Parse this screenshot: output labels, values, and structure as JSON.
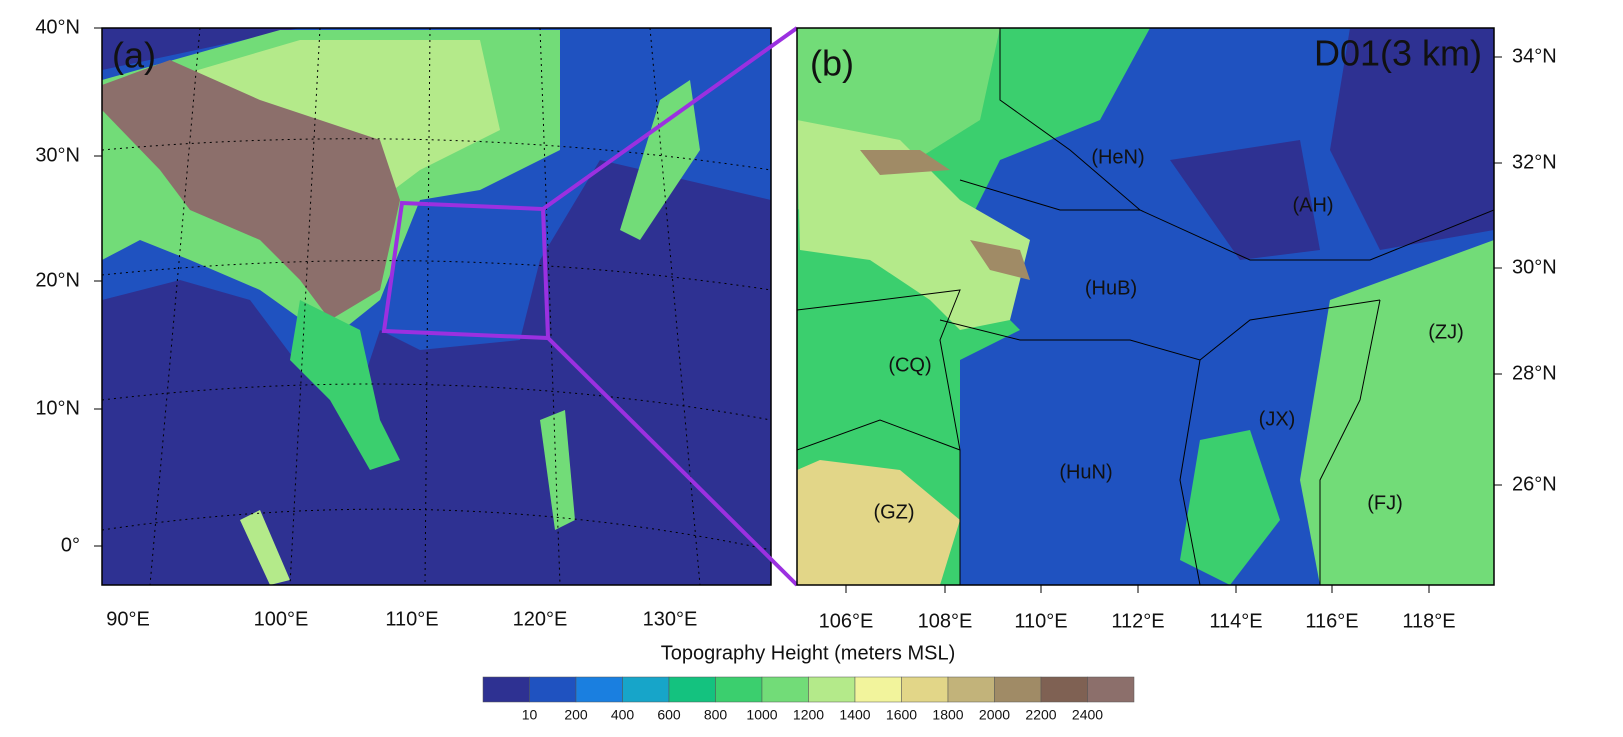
{
  "panel_a": {
    "label": "(a)",
    "lat_labels": [
      "40°N",
      "30°N",
      "20°N",
      "10°N",
      "0°"
    ],
    "lon_labels": [
      "90°E",
      "100°E",
      "110°E",
      "120°E",
      "130°E"
    ]
  },
  "panel_b": {
    "label": "(b)",
    "title": "D01(3 km)",
    "lat_labels": [
      "34°N",
      "32°N",
      "30°N",
      "28°N",
      "26°N"
    ],
    "lon_labels": [
      "106°E",
      "108°E",
      "110°E",
      "112°E",
      "114°E",
      "116°E",
      "118°E"
    ],
    "regions": [
      "(HeN)",
      "(AH)",
      "(HuB)",
      "(ZJ)",
      "(CQ)",
      "(JX)",
      "(HuN)",
      "(FJ)",
      "(GZ)"
    ]
  },
  "colorbar": {
    "title": "Topography Height (meters MSL)",
    "labels": [
      "10",
      "200",
      "400",
      "600",
      "800",
      "1000",
      "1200",
      "1400",
      "1600",
      "1800",
      "2000",
      "2200",
      "2400"
    ],
    "colors": [
      "#2e3192",
      "#1f52c0",
      "#1a7fe0",
      "#17a5c9",
      "#14c27f",
      "#3bcf6e",
      "#72dc78",
      "#b4ea8a",
      "#f2f49c",
      "#e2d688",
      "#c2b37a",
      "#a08b66",
      "#7f6153",
      "#8c6f6b"
    ]
  }
}
